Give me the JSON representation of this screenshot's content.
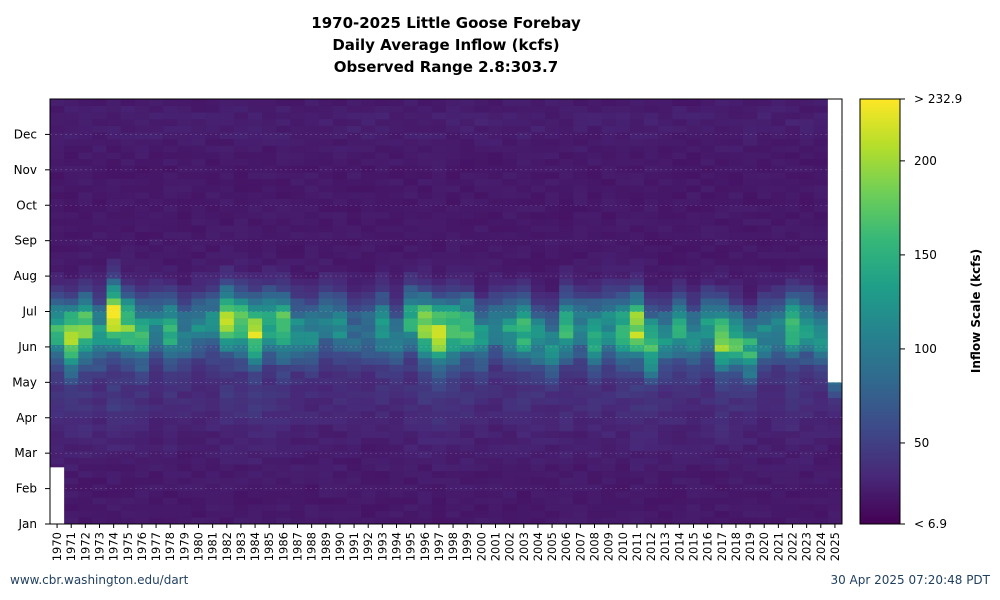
{
  "footer": {
    "source": "www.cbr.washington.edu/dart",
    "timestamp": "30 Apr 2025 07:20:48 PDT"
  },
  "chart_data": {
    "type": "heatmap",
    "title": [
      "1970-2025 Little Goose Forebay",
      "Daily Average Inflow (kcfs)",
      "Observed Range 2.8:303.7"
    ],
    "x_tick_labels": [
      "1970",
      "1971",
      "1972",
      "1973",
      "1974",
      "1975",
      "1976",
      "1977",
      "1978",
      "1979",
      "1980",
      "1981",
      "1982",
      "1983",
      "1984",
      "1985",
      "1986",
      "1987",
      "1988",
      "1989",
      "1990",
      "1991",
      "1992",
      "1993",
      "1994",
      "1995",
      "1996",
      "1997",
      "1998",
      "1999",
      "2000",
      "2001",
      "2002",
      "2003",
      "2004",
      "2005",
      "2006",
      "2007",
      "2008",
      "2009",
      "2010",
      "2011",
      "2012",
      "2013",
      "2014",
      "2015",
      "2016",
      "2017",
      "2018",
      "2019",
      "2020",
      "2021",
      "2022",
      "2023",
      "2024",
      "2025"
    ],
    "y_tick_labels": [
      "Jan",
      "Feb",
      "Mar",
      "Apr",
      "May",
      "Jun",
      "Jul",
      "Aug",
      "Sep",
      "Oct",
      "Nov",
      "Dec"
    ],
    "colorbar": {
      "label": "Inflow Scale (kcfs)",
      "min": 6.9,
      "max": 232.9,
      "ticks": [
        50,
        100,
        150,
        200
      ],
      "min_label": "< 6.9",
      "max_label": "> 232.9",
      "colormap": [
        "#440154",
        "#482878",
        "#3e4989",
        "#31688e",
        "#26828e",
        "#1f9e89",
        "#35b779",
        "#6ece58",
        "#b5de2b",
        "#fde725"
      ]
    },
    "annual_peak_kcfs": [
      150,
      205,
      190,
      130,
      230,
      185,
      160,
      120,
      155,
      110,
      115,
      120,
      200,
      175,
      210,
      160,
      180,
      120,
      115,
      110,
      120,
      95,
      100,
      130,
      105,
      150,
      200,
      215,
      180,
      165,
      130,
      110,
      135,
      165,
      130,
      120,
      160,
      115,
      160,
      130,
      170,
      205,
      170,
      125,
      140,
      120,
      130,
      200,
      165,
      150,
      120,
      115,
      165,
      140,
      120,
      95
    ],
    "annual_peak_month": [
      5.5,
      5.3,
      5.6,
      5.4,
      5.9,
      5.6,
      5.4,
      5.6,
      5.5,
      5.4,
      5.6,
      5.7,
      5.8,
      5.7,
      5.5,
      5.7,
      5.6,
      5.5,
      5.4,
      5.7,
      5.6,
      5.4,
      5.5,
      5.6,
      5.3,
      5.8,
      5.6,
      5.4,
      5.5,
      5.6,
      5.3,
      5.6,
      5.5,
      5.5,
      5.3,
      5.1,
      5.6,
      5.6,
      5.4,
      5.6,
      5.5,
      5.6,
      5.1,
      5.3,
      5.5,
      5.3,
      5.6,
      5.3,
      5.2,
      5.0,
      5.4,
      5.5,
      5.6,
      5.6,
      5.3,
      4.5
    ],
    "data_end_2025": "Apr 30"
  }
}
